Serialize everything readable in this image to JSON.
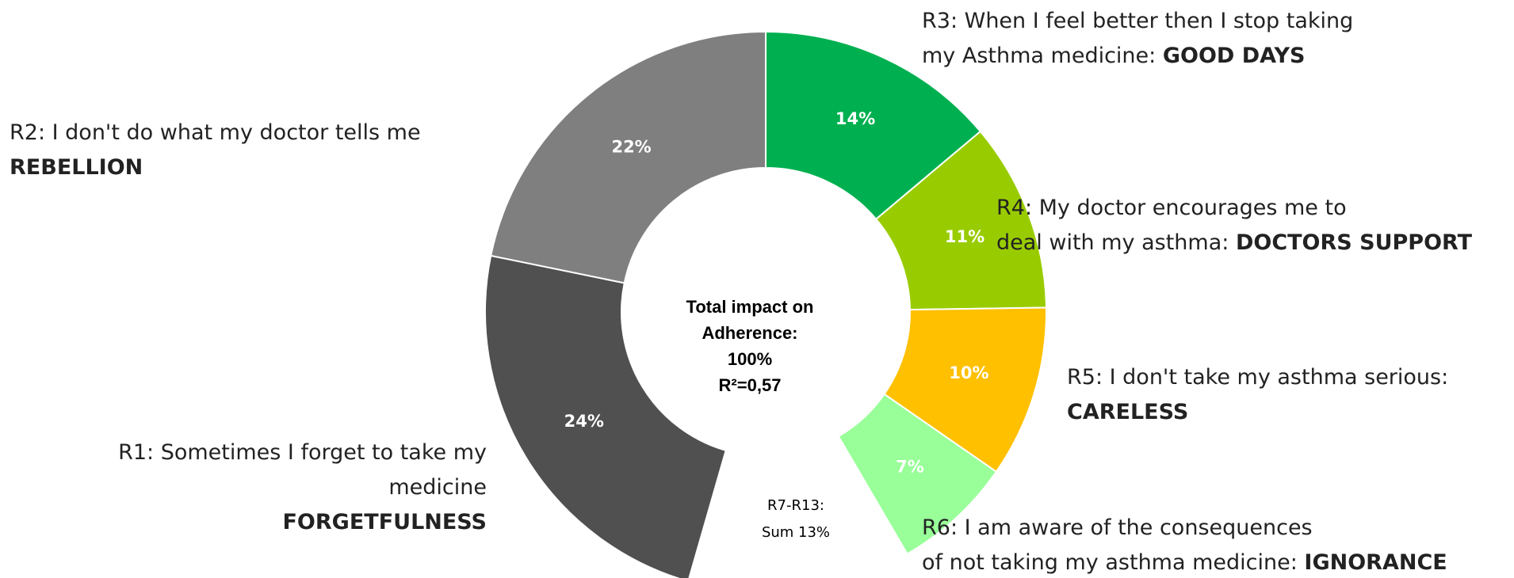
{
  "chart_data": {
    "type": "donut",
    "center_text": [
      "Total impact on",
      "Adherence:",
      "100%",
      "R²=0,57"
    ],
    "values": [
      14,
      11,
      10,
      7,
      13,
      24,
      22
    ],
    "value_labels": [
      "14%",
      "11%",
      "10%",
      "7%",
      null,
      "24%",
      "22%"
    ],
    "colors": [
      "#00b050",
      "#99cc00",
      "#ffc000",
      "#99ff99",
      "none",
      "#505050",
      "#7f7f7f"
    ],
    "labels": [
      [
        [
          {
            "text": "R3: When I feel better then I stop taking"
          }
        ],
        [
          {
            "text": "my Asthma medicine: "
          },
          {
            "text": "GOOD DAYS",
            "bold": true
          }
        ]
      ],
      [
        [
          {
            "text": "R4: My doctor encourages me to"
          }
        ],
        [
          {
            "text": "deal with my asthma: "
          },
          {
            "text": "DOCTORS SUPPORT",
            "bold": true
          }
        ]
      ],
      [
        [
          {
            "text": "R5: I don't take my asthma serious:"
          }
        ],
        [
          {
            "text": "CARELESS",
            "bold": true
          }
        ]
      ],
      [
        [
          {
            "text": "R6: I am aware of the consequences"
          }
        ],
        [
          {
            "text": "of not taking my asthma medicine: "
          },
          {
            "text": "IGNORANCE",
            "bold": true
          }
        ]
      ],
      [
        [
          {
            "text": "R7-R13:"
          }
        ],
        [
          {
            "text": "Sum 13%"
          }
        ]
      ],
      [
        [
          {
            "text": "R1: Sometimes I forget to take my"
          }
        ],
        [
          {
            "text": "medicine"
          }
        ],
        [
          {
            "text": "FORGETFULNESS",
            "bold": true
          }
        ]
      ],
      [
        [
          {
            "text": "R2: I don't do what my doctor tells me"
          }
        ],
        [
          {
            "text": "REBELLION",
            "bold": true
          }
        ]
      ]
    ]
  }
}
